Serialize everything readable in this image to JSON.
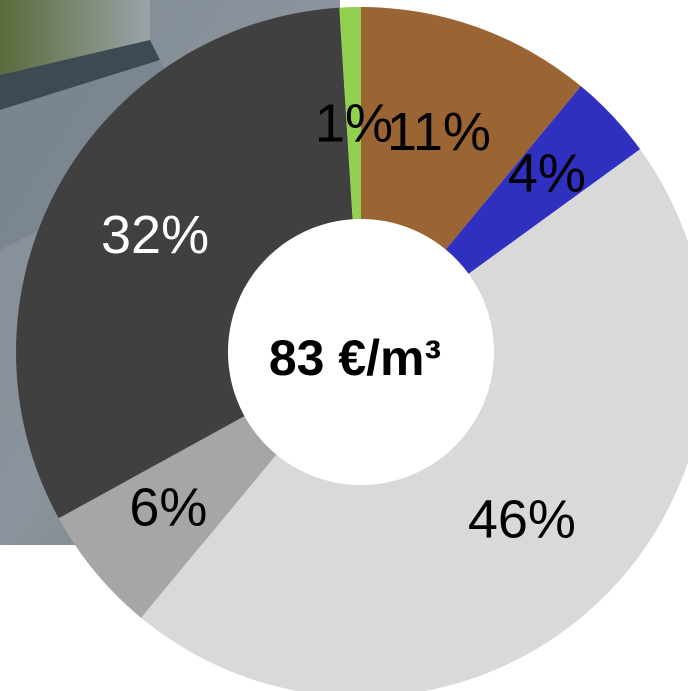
{
  "chart_data": {
    "type": "pie",
    "variant": "donut",
    "center_label": "83 €/m³",
    "slices": [
      {
        "label": "11%",
        "value": 11,
        "color": "#9a6433",
        "label_color": "#000000"
      },
      {
        "label": "4%",
        "value": 4,
        "color": "#3030c0",
        "label_color": "#000000"
      },
      {
        "label": "46%",
        "value": 46,
        "color": "#d9d9d9",
        "label_color": "#000000"
      },
      {
        "label": "6%",
        "value": 6,
        "color": "#a6a6a6",
        "label_color": "#000000"
      },
      {
        "label": "32%",
        "value": 32,
        "color": "#404040",
        "label_color": "#ffffff"
      },
      {
        "label": "1%",
        "value": 1,
        "color": "#92d050",
        "label_color": "#000000"
      }
    ]
  }
}
